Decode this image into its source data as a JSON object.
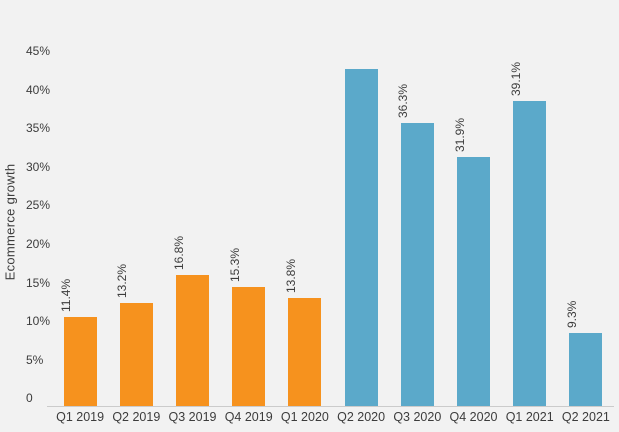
{
  "background_color": "#F2F2F2",
  "text_color": "#3C3C3C",
  "axis_line_color": "#CBCBCB",
  "chart_data": {
    "type": "bar",
    "title": "",
    "xlabel": "",
    "ylabel": "Ecommerce growth",
    "categories": [
      "Q1 2019",
      "Q2 2019",
      "Q3 2019",
      "Q4 2019",
      "Q1 2020",
      "Q2 2020",
      "Q3 2020",
      "Q4 2020",
      "Q1 2021",
      "Q2 2021"
    ],
    "values": [
      11.4,
      13.2,
      16.8,
      15.3,
      13.8,
      43.2,
      36.3,
      31.9,
      39.1,
      9.3
    ],
    "data_labels": [
      "11.4%",
      "13.2%",
      "16.8%",
      "15.3%",
      "13.8%",
      null,
      "36.3%",
      "31.9%",
      "39.1%",
      "9.3%"
    ],
    "point_colors": [
      "#F6921E",
      "#F6921E",
      "#F6921E",
      "#F6921E",
      "#F6921E",
      "#5BA9CA",
      "#5BA9CA",
      "#5BA9CA",
      "#5BA9CA",
      "#5BA9CA"
    ],
    "y_ticks": [
      {
        "label": "45%",
        "value": 45
      },
      {
        "label": "40%",
        "value": 40
      },
      {
        "label": "35%",
        "value": 35
      },
      {
        "label": "30%",
        "value": 30
      },
      {
        "label": "25%",
        "value": 25
      },
      {
        "label": "20%",
        "value": 20
      },
      {
        "label": "15%",
        "value": 15
      },
      {
        "label": "10%",
        "value": 10
      },
      {
        "label": "5%",
        "value": 5
      },
      {
        "label": "0",
        "value": 0
      }
    ],
    "ylim": [
      0,
      45
    ],
    "grid": false,
    "legend": null
  }
}
